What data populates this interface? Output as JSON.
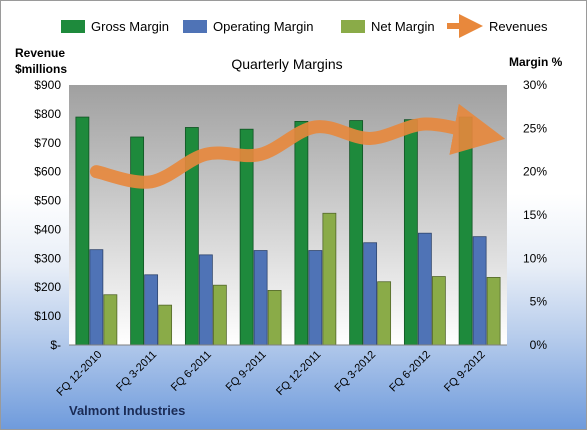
{
  "chart_data": {
    "type": "bar",
    "title": "Quarterly Margins",
    "categories": [
      "FQ 12-2010",
      "FQ 3-2011",
      "FQ 6-2011",
      "FQ 9-2011",
      "FQ 12-2011",
      "FQ 3-2012",
      "FQ 6-2012",
      "FQ 9-2012"
    ],
    "series": [
      {
        "name": "Gross Margin",
        "axis": "right",
        "unit": "%",
        "values": [
          26.3,
          24.0,
          25.1,
          24.9,
          25.8,
          25.9,
          26.0,
          26.3
        ],
        "color": "#1e8a3c"
      },
      {
        "name": "Operating Margin",
        "axis": "right",
        "unit": "%",
        "values": [
          11.0,
          8.1,
          10.4,
          10.9,
          10.9,
          11.8,
          12.9,
          12.5
        ],
        "color": "#4f73b6"
      },
      {
        "name": "Net Margin",
        "axis": "right",
        "unit": "%",
        "values": [
          5.8,
          4.6,
          6.9,
          6.3,
          15.2,
          7.3,
          7.9,
          7.8
        ],
        "color": "#8aab48"
      },
      {
        "name": "Revenues",
        "type": "line",
        "axis": "left",
        "unit": "$millions",
        "values": [
          600,
          565,
          660,
          660,
          755,
          715,
          765,
          730
        ],
        "color": "#e8883c"
      }
    ],
    "ylabel_left": "Revenue $millions",
    "ylim_left": [
      0,
      900
    ],
    "yticks_left": [
      "$-",
      "$100",
      "$200",
      "$300",
      "$400",
      "$500",
      "$600",
      "$700",
      "$800",
      "$900"
    ],
    "ylabel_right": "Margin %",
    "ylim_right": [
      0,
      30
    ],
    "yticks_right": [
      "0%",
      "5%",
      "10%",
      "15%",
      "20%",
      "25%",
      "30%"
    ],
    "legend_position": "top",
    "grid": false
  },
  "labels": {
    "left_axis_line1": "Revenue",
    "left_axis_line2": "$millions",
    "right_axis": "Margin  %",
    "footer": "Valmont Industries"
  },
  "colors": {
    "plot_bg_top": "#a6a6a6",
    "plot_bg_bottom": "#ffffff"
  }
}
